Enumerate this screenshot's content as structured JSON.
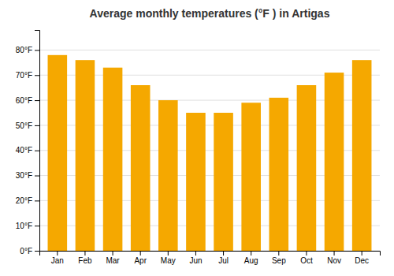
{
  "chart_data": {
    "type": "bar",
    "title": "Average monthly temperatures (°F ) in Artigas",
    "categories": [
      "Jan",
      "Feb",
      "Mar",
      "Apr",
      "May",
      "Jun",
      "Jul",
      "Aug",
      "Sep",
      "Oct",
      "Nov",
      "Dec"
    ],
    "values": [
      78,
      76,
      73,
      66,
      60,
      55,
      55,
      59,
      61,
      66,
      71,
      76
    ],
    "color": "#F5A800",
    "ylim": [
      0,
      88
    ],
    "yticks": [
      {
        "value": 0,
        "label": "0°F"
      },
      {
        "value": 10,
        "label": "10°F"
      },
      {
        "value": 20,
        "label": "20°F"
      },
      {
        "value": 30,
        "label": "30°F"
      },
      {
        "value": 40,
        "label": "40°F"
      },
      {
        "value": 50,
        "label": "50°F"
      },
      {
        "value": 60,
        "label": "60°F"
      },
      {
        "value": 70,
        "label": "70°F"
      },
      {
        "value": 80,
        "label": "80°F"
      }
    ],
    "grid": true
  }
}
